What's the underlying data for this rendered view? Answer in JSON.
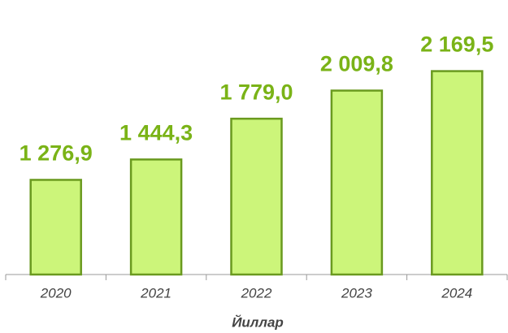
{
  "chart_data": {
    "type": "bar",
    "categories": [
      "2020",
      "2021",
      "2022",
      "2023",
      "2024"
    ],
    "values": [
      1276.9,
      1444.3,
      1779.0,
      2009.8,
      2169.5
    ],
    "value_labels": [
      "1 276,9",
      "1 444,3",
      "1 779,0",
      "2 009,8",
      "2 169,5"
    ],
    "x_label": "Йиллар",
    "color": "#ccf57a",
    "edge_color": "#6a9a1f",
    "label_color": "#7ab317",
    "ylim": [
      500,
      2500
    ]
  }
}
